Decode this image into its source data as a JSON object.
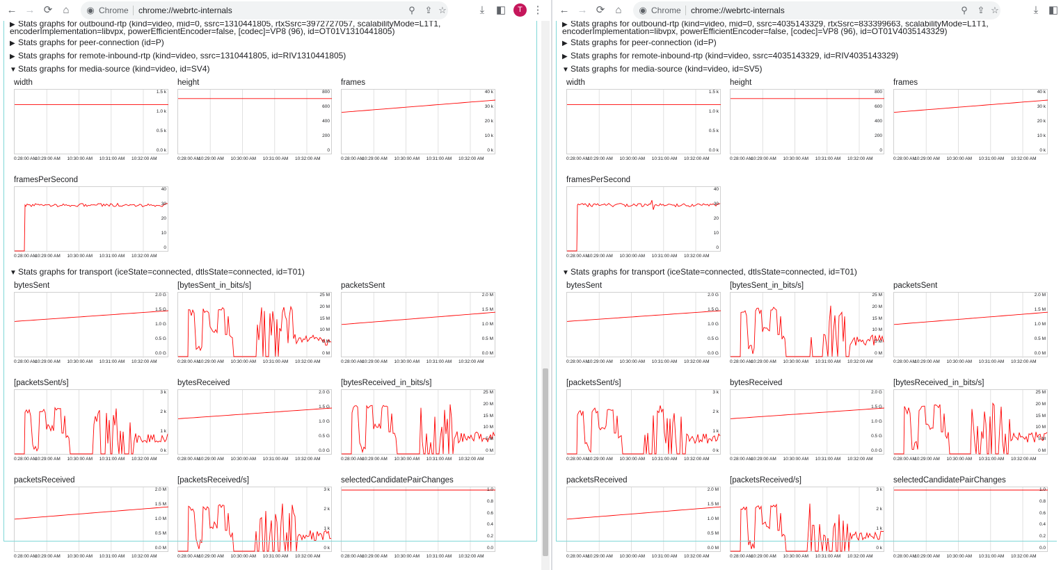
{
  "toolbar": {
    "chip_label": "Chrome",
    "url": "chrome://webrtc-internals",
    "avatar_letter": "T"
  },
  "windows": [
    {
      "partial_line_1": "Stats graphs for outbound-rtp (kind=video, mid=0, ssrc=1310441805, rtxSsrc=3972727057, scalabilityMode=L1T1,",
      "partial_line_2": "encoderImplementation=libvpx, powerEfficientEncoder=false, [codec]=VP8 (96), id=OT01V1310441805)",
      "peer_line": "Stats graphs for peer-connection (id=P)",
      "remote_line": "Stats graphs for remote-inbound-rtp (kind=video, ssrc=1310441805, id=RIV1310441805)",
      "media_line": "Stats graphs for media-source (kind=video, id=SV4)",
      "transport_line": "Stats graphs for transport (iceState=connected, dtlsState=connected, id=T01)"
    },
    {
      "partial_line_1": "Stats graphs for outbound-rtp (kind=video, mid=0, ssrc=4035143329, rtxSsrc=833399663, scalabilityMode=L1T1,",
      "partial_line_2": "encoderImplementation=libvpx, powerEfficientEncoder=false, [codec]=VP8 (96), id=OT01V4035143329)",
      "peer_line": "Stats graphs for peer-connection (id=P)",
      "remote_line": "Stats graphs for remote-inbound-rtp (kind=video, ssrc=4035143329, id=RIV4035143329)",
      "media_line": "Stats graphs for media-source (kind=video, id=SV5)",
      "transport_line": "Stats graphs for transport (iceState=connected, dtlsState=connected, id=T01)"
    }
  ],
  "x_ticks": [
    "0:28:00 AM",
    "10:29:00 AM",
    "10:30:00 AM",
    "10:31:00 AM",
    "10:32:00 AM"
  ],
  "colors": {
    "line": "#ff0000",
    "grid": "#e0e0e0",
    "frame_accent": "#7fd7d7",
    "avatar": "#c5175b"
  },
  "chart_data": [
    {
      "name": "width",
      "type": "line",
      "yticks": [
        "1.5 k",
        "1.0 k",
        "0.5 k",
        "0.0 k"
      ],
      "ylim": [
        0,
        1600
      ],
      "shape": "flat",
      "value": 1280
    },
    {
      "name": "height",
      "type": "line",
      "yticks": [
        "800",
        "600",
        "400",
        "200",
        "0"
      ],
      "ylim": [
        0,
        800
      ],
      "shape": "flat",
      "value": 720
    },
    {
      "name": "frames",
      "type": "line",
      "yticks": [
        "40 k",
        "30 k",
        "20 k",
        "10 k",
        "0 k"
      ],
      "ylim": [
        0,
        40000
      ],
      "shape": "ramp",
      "start": 27000,
      "end": 35000
    },
    {
      "name": "framesPerSecond",
      "type": "line",
      "yticks": [
        "40",
        "30",
        "20",
        "10",
        "0"
      ],
      "ylim": [
        0,
        40
      ],
      "shape": "step_noise",
      "value": 30
    },
    {
      "name": "bytesSent",
      "type": "line",
      "yticks": [
        "2.0 G",
        "1.5 G",
        "1.0 G",
        "0.5 G",
        "0.0 G"
      ],
      "ylim": [
        0,
        2.0
      ],
      "shape": "ramp",
      "start": 1.15,
      "end": 1.5
    },
    {
      "name": "[bytesSent_in_bits/s]",
      "type": "line",
      "yticks": [
        "25 M",
        "20 M",
        "15 M",
        "10 M",
        "5 M",
        "0 M"
      ],
      "ylim": [
        0,
        25
      ],
      "shape": "bursty",
      "value": 15
    },
    {
      "name": "packetsSent",
      "type": "line",
      "yticks": [
        "2.0 M",
        "1.5 M",
        "1.0 M",
        "0.5 M",
        "0.0 M"
      ],
      "ylim": [
        0,
        2.0
      ],
      "shape": "ramp",
      "start": 1.05,
      "end": 1.45
    },
    {
      "name": "[packetsSent/s]",
      "type": "line",
      "yticks": [
        "3 k",
        "2 k",
        "1 k",
        "0 k"
      ],
      "ylim": [
        0,
        3000
      ],
      "shape": "bursty",
      "value": 1700
    },
    {
      "name": "bytesReceived",
      "type": "line",
      "yticks": [
        "2.0 G",
        "1.5 G",
        "1.0 G",
        "0.5 G",
        "0.0 G"
      ],
      "ylim": [
        0,
        2.0
      ],
      "shape": "ramp",
      "start": 1.15,
      "end": 1.5
    },
    {
      "name": "[bytesReceived_in_bits/s]",
      "type": "line",
      "yticks": [
        "25 M",
        "20 M",
        "15 M",
        "10 M",
        "5 M",
        "0 M"
      ],
      "ylim": [
        0,
        25
      ],
      "shape": "bursty",
      "value": 15
    },
    {
      "name": "packetsReceived",
      "type": "line",
      "yticks": [
        "2.0 M",
        "1.5 M",
        "1.0 M",
        "0.5 M",
        "0.0 M"
      ],
      "ylim": [
        0,
        2.0
      ],
      "shape": "ramp",
      "start": 1.05,
      "end": 1.45
    },
    {
      "name": "[packetsReceived/s]",
      "type": "line",
      "yticks": [
        "3 k",
        "2 k",
        "1 k",
        "0 k"
      ],
      "ylim": [
        0,
        3000
      ],
      "shape": "bursty",
      "value": 1700
    },
    {
      "name": "selectedCandidatePairChanges",
      "type": "line",
      "yticks": [
        "1.0",
        "0.8",
        "0.6",
        "0.4",
        "0.2",
        "0.0"
      ],
      "ylim": [
        0,
        1
      ],
      "shape": "flat",
      "value": 1.0
    }
  ]
}
